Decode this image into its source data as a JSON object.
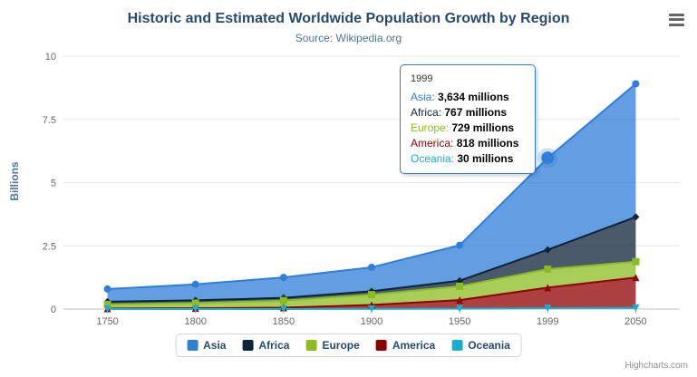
{
  "chart": {
    "title": "Historic and Estimated Worldwide Population Growth by Region",
    "subtitle": "Source: Wikipedia.org",
    "y_axis_title": "Billions",
    "credits": "Highcharts.com",
    "axis_label_color": "#666666",
    "grid_color": "#e6e6e6",
    "axis_line_color": "#c0c0c0"
  },
  "chart_data": {
    "type": "area",
    "stacking": "normal",
    "title": "Historic and Estimated Worldwide Population Growth by Region",
    "subtitle": "Source: Wikipedia.org",
    "xlabel": "",
    "ylabel": "Billions",
    "unit": "millions",
    "categories": [
      "1750",
      "1800",
      "1850",
      "1900",
      "1950",
      "1999",
      "2050"
    ],
    "series": [
      {
        "name": "Asia",
        "color": "#2f7ed8",
        "marker": "circle",
        "values": [
          502,
          635,
          809,
          947,
          1402,
          3634,
          5268
        ]
      },
      {
        "name": "Africa",
        "color": "#0d233a",
        "marker": "diamond",
        "values": [
          106,
          107,
          111,
          133,
          221,
          767,
          1766
        ]
      },
      {
        "name": "Europe",
        "color": "#8bbc21",
        "marker": "square",
        "values": [
          163,
          203,
          276,
          408,
          547,
          729,
          628
        ]
      },
      {
        "name": "America",
        "color": "#910000",
        "marker": "triangle",
        "values": [
          18,
          31,
          54,
          156,
          339,
          818,
          1201
        ]
      },
      {
        "name": "Oceania",
        "color": "#1aadce",
        "marker": "triangle-down",
        "values": [
          2,
          2,
          2,
          6,
          13,
          30,
          46
        ]
      }
    ],
    "fill_opacity": 0.75,
    "ylim": [
      0,
      10
    ],
    "yticks": [
      0,
      2.5,
      5,
      7.5,
      10
    ],
    "ytick_labels": [
      "0",
      "2.5",
      "5",
      "7.5",
      "10"
    ],
    "grid": "horizontal",
    "legend_position": "bottom",
    "hover": {
      "series": "Asia",
      "category": "1999"
    }
  },
  "tooltip": {
    "header": "1999",
    "rows": [
      {
        "name": "Asia",
        "value": "3,634 millions"
      },
      {
        "name": "Africa",
        "value": "767 millions"
      },
      {
        "name": "Europe",
        "value": "729 millions"
      },
      {
        "name": "America",
        "value": "818 millions"
      },
      {
        "name": "Oceania",
        "value": "30 millions"
      }
    ]
  }
}
